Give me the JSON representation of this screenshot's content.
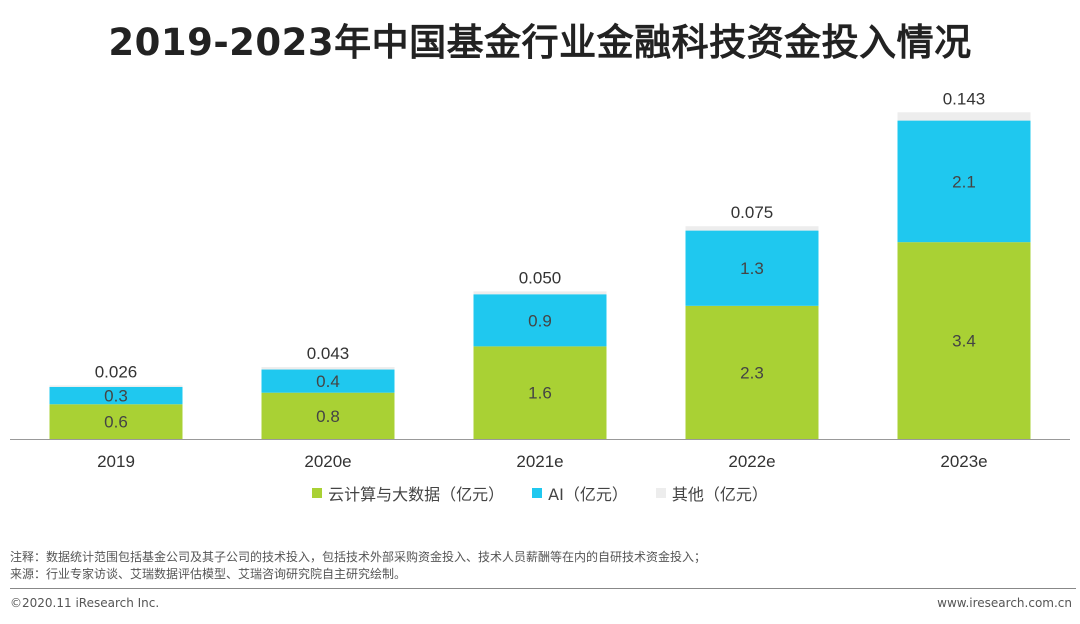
{
  "title": "2019-2023年中国基金行业金融科技资金投入情况",
  "colors": {
    "cloud": "#A9D134",
    "ai": "#1FC8EF",
    "other": "#EDEDED",
    "axis": "#999999"
  },
  "legend": [
    {
      "label": "云计算与大数据（亿元）",
      "color": "#A9D134"
    },
    {
      "label": "AI（亿元）",
      "color": "#1FC8EF"
    },
    {
      "label": "其他（亿元）",
      "color": "#EDEDED"
    }
  ],
  "chart_data": {
    "type": "bar",
    "stacked": true,
    "title": "2019-2023年中国基金行业金融科技资金投入情况",
    "categories": [
      "2019",
      "2020e",
      "2021e",
      "2022e",
      "2023e"
    ],
    "series": [
      {
        "name": "云计算与大数据（亿元）",
        "values": [
          0.6,
          0.8,
          1.6,
          2.3,
          3.4
        ],
        "labels": [
          "0.6",
          "0.8",
          "1.6",
          "2.3",
          "3.4"
        ]
      },
      {
        "name": "AI（亿元）",
        "values": [
          0.3,
          0.4,
          0.9,
          1.3,
          2.1
        ],
        "labels": [
          "0.3",
          "0.4",
          "0.9",
          "1.3",
          "2.1"
        ]
      },
      {
        "name": "其他（亿元）",
        "values": [
          0.026,
          0.043,
          0.05,
          0.075,
          0.143
        ],
        "labels": [
          "0.026",
          "0.043",
          "0.050",
          "0.075",
          "0.143"
        ]
      }
    ],
    "ylim": [
      0,
      5.7
    ],
    "xlabel": "",
    "ylabel": "",
    "grid": false,
    "legend_position": "bottom"
  },
  "notes": {
    "line1": "注释：数据统计范围包括基金公司及其子公司的技术投入，包括技术外部采购资金投入、技术人员薪酬等在内的自研技术资金投入；",
    "line2": "来源：行业专家访谈、艾瑞数据评估模型、艾瑞咨询研究院自主研究绘制。"
  },
  "footer": {
    "copyright": "©2020.11 iResearch Inc.",
    "website": "www.iresearch.com.cn"
  }
}
